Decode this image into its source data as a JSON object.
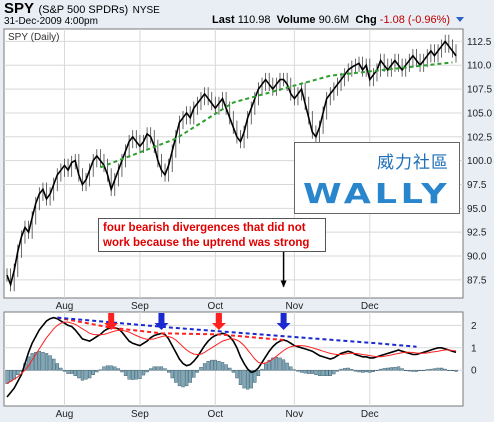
{
  "header": {
    "ticker": "SPY",
    "full_name": "(S&P 500 SPDRs)",
    "exchange": "NYSE",
    "datetime": "31-Dec-2009 4:00pm",
    "last_label": "Last",
    "last_value": "110.98",
    "volume_label": "Volume",
    "volume_value": "90.6M",
    "chg_label": "Chg",
    "chg_value": "-1.08 (-0.96%)",
    "colors": {
      "negative": "#c00000",
      "accent": "#2a63c4"
    }
  },
  "annotation": {
    "line1": "four bearish divergences that did not",
    "line2": "work because the uptrend was strong",
    "color": "#e00000"
  },
  "watermark": {
    "chinese": "威力社區",
    "latin": "WALLY"
  },
  "chart_data": [
    {
      "type": "line",
      "legend": "SPY (Daily)",
      "x_labels": [
        "Aug",
        "Sep",
        "Oct",
        "Nov",
        "Dec"
      ],
      "y_ticks": [
        "112.5",
        "110.0",
        "107.5",
        "105.0",
        "102.5",
        "100.0",
        "97.5",
        "95.0",
        "92.5",
        "90.0",
        "87.5"
      ],
      "ylim": [
        85.6,
        113.8
      ],
      "grid": true,
      "price_series": {
        "start_day": 0,
        "values": [
          88.0,
          87.0,
          88.5,
          90.5,
          92.0,
          93.0,
          92.5,
          94.0,
          95.5,
          96.5,
          97.0,
          96.0,
          96.5,
          97.5,
          98.5,
          99.0,
          99.5,
          99.0,
          99.8,
          100.0,
          98.5,
          97.5,
          98.0,
          99.0,
          100.0,
          100.5,
          100.0,
          99.5,
          98.5,
          97.0,
          98.0,
          99.0,
          100.0,
          101.0,
          102.0,
          102.5,
          102.0,
          101.5,
          102.0,
          102.8,
          102.5,
          101.5,
          100.0,
          99.0,
          98.5,
          99.5,
          101.0,
          102.5,
          104.0,
          104.5,
          105.0,
          104.5,
          105.5,
          106.0,
          106.5,
          107.0,
          106.5,
          106.0,
          105.5,
          106.0,
          106.5,
          105.5,
          104.5,
          103.5,
          102.5,
          102.0,
          103.0,
          104.5,
          105.5,
          106.5,
          107.5,
          108.0,
          108.5,
          108.0,
          107.5,
          108.0,
          108.5,
          108.5,
          108.0,
          107.0,
          106.5,
          107.0,
          107.5,
          106.0,
          104.5,
          103.0,
          102.5,
          103.5,
          105.0,
          106.5,
          107.0,
          107.5,
          108.0,
          108.5,
          109.0,
          109.5,
          109.8,
          110.0,
          110.2,
          109.5,
          110.0,
          108.5,
          109.0,
          109.5,
          110.5,
          110.0,
          109.5,
          110.0,
          110.5,
          110.0,
          109.5,
          110.0,
          110.5,
          111.0,
          110.5,
          110.0,
          110.5,
          111.0,
          111.5,
          111.0,
          111.5,
          112.0,
          112.5,
          112.0,
          111.5,
          110.98
        ]
      },
      "trendlines": [
        {
          "color": "#2e9e2e",
          "style": "dashed",
          "points": [
            [
              26,
              99.3
            ],
            [
              47,
              102.3
            ],
            [
              63,
              106.1
            ],
            [
              90,
              108.9
            ],
            [
              124,
              110.3
            ]
          ]
        }
      ],
      "arrow": {
        "day": 77,
        "from_y": 91.8,
        "to_y": 86.8,
        "color": "#000000"
      }
    },
    {
      "type": "line",
      "indicator": "MACD",
      "y_ticks": [
        "2",
        "1",
        "0"
      ],
      "ylim": [
        -1.6,
        2.6
      ],
      "series": [
        {
          "color": "#000000",
          "start_day": 0,
          "values": [
            -1.2,
            -1.0,
            -0.8,
            -0.5,
            -0.2,
            0.3,
            0.8,
            1.2,
            1.5,
            1.8,
            2.0,
            2.2,
            2.3,
            2.35,
            2.3,
            2.2,
            2.1,
            2.0,
            1.95,
            1.8,
            1.6,
            1.4,
            1.35,
            1.3,
            1.4,
            1.5,
            1.6,
            1.75,
            1.85,
            1.9,
            1.9,
            1.85,
            1.7,
            1.5,
            1.3,
            1.2,
            1.15,
            1.1,
            1.2,
            1.3,
            1.45,
            1.55,
            1.6,
            1.65,
            1.6,
            1.4,
            1.1,
            0.8,
            0.5,
            0.3,
            0.2,
            0.25,
            0.4,
            0.6,
            0.85,
            1.1,
            1.3,
            1.45,
            1.55,
            1.6,
            1.65,
            1.6,
            1.5,
            1.3,
            1.0,
            0.6,
            0.3,
            0.05,
            -0.1,
            -0.05,
            0.1,
            0.35,
            0.6,
            0.85,
            1.05,
            1.2,
            1.3,
            1.35,
            1.3,
            1.2,
            1.1,
            1.05,
            1.0,
            0.95,
            0.9,
            0.85,
            0.75,
            0.65,
            0.6,
            0.55,
            0.5,
            0.55,
            0.65,
            0.75,
            0.8,
            0.85,
            0.8,
            0.7,
            0.65,
            0.6,
            0.6,
            0.55,
            0.55,
            0.6,
            0.65,
            0.7,
            0.75,
            0.8,
            0.85,
            0.9,
            0.85,
            0.8,
            0.75,
            0.7,
            0.7,
            0.75,
            0.8,
            0.85,
            0.9,
            0.95,
            1.0,
            1.0,
            0.95,
            0.9,
            0.85,
            0.8
          ]
        },
        {
          "color": "#ff2020",
          "start_day": 0,
          "values": [
            -0.6,
            -0.5,
            -0.4,
            -0.3,
            -0.15,
            0.0,
            0.2,
            0.45,
            0.7,
            0.95,
            1.2,
            1.45,
            1.65,
            1.85,
            2.0,
            2.1,
            2.15,
            2.15,
            2.1,
            2.05,
            1.95,
            1.85,
            1.75,
            1.65,
            1.6,
            1.58,
            1.58,
            1.6,
            1.65,
            1.7,
            1.75,
            1.78,
            1.78,
            1.75,
            1.7,
            1.62,
            1.55,
            1.48,
            1.42,
            1.38,
            1.38,
            1.4,
            1.45,
            1.5,
            1.53,
            1.5,
            1.45,
            1.35,
            1.2,
            1.05,
            0.9,
            0.8,
            0.72,
            0.7,
            0.72,
            0.8,
            0.9,
            1.0,
            1.1,
            1.2,
            1.3,
            1.35,
            1.4,
            1.4,
            1.35,
            1.25,
            1.1,
            0.9,
            0.7,
            0.5,
            0.35,
            0.3,
            0.32,
            0.4,
            0.5,
            0.62,
            0.75,
            0.88,
            0.98,
            1.05,
            1.08,
            1.1,
            1.1,
            1.08,
            1.05,
            1.0,
            0.95,
            0.9,
            0.85,
            0.8,
            0.75,
            0.72,
            0.7,
            0.7,
            0.72,
            0.75,
            0.76,
            0.75,
            0.73,
            0.7,
            0.68,
            0.65,
            0.62,
            0.6,
            0.6,
            0.62,
            0.65,
            0.68,
            0.72,
            0.75,
            0.78,
            0.8,
            0.8,
            0.79,
            0.77,
            0.76,
            0.76,
            0.77,
            0.8,
            0.82,
            0.85,
            0.88,
            0.9,
            0.9,
            0.88,
            0.86
          ]
        }
      ],
      "histogram": {
        "color": "#7fa7b7",
        "values": [
          -0.6,
          -0.5,
          -0.4,
          -0.2,
          -0.05,
          0.3,
          0.6,
          0.75,
          0.8,
          0.85,
          0.8,
          0.75,
          0.65,
          0.5,
          0.3,
          0.1,
          -0.05,
          -0.15,
          -0.15,
          -0.25,
          -0.35,
          -0.45,
          -0.4,
          -0.35,
          -0.2,
          -0.08,
          0.02,
          0.15,
          0.2,
          0.2,
          0.15,
          0.07,
          -0.08,
          -0.25,
          -0.4,
          -0.42,
          -0.4,
          -0.38,
          -0.22,
          -0.08,
          0.07,
          0.15,
          0.15,
          0.15,
          0.07,
          -0.1,
          -0.35,
          -0.55,
          -0.7,
          -0.75,
          -0.7,
          -0.55,
          -0.32,
          -0.1,
          0.13,
          0.3,
          0.4,
          0.45,
          0.45,
          0.4,
          0.35,
          0.25,
          0.1,
          -0.1,
          -0.35,
          -0.65,
          -0.8,
          -0.85,
          -0.8,
          -0.55,
          -0.25,
          0.05,
          0.28,
          0.45,
          0.55,
          0.58,
          0.55,
          0.47,
          0.32,
          0.15,
          0.02,
          -0.05,
          -0.1,
          -0.13,
          -0.15,
          -0.15,
          -0.2,
          -0.25,
          -0.25,
          -0.25,
          -0.25,
          -0.17,
          -0.05,
          0.05,
          0.08,
          0.1,
          0.04,
          -0.05,
          -0.08,
          -0.1,
          -0.08,
          -0.1,
          -0.07,
          0.0,
          0.05,
          0.08,
          0.1,
          0.12,
          0.13,
          0.15,
          0.07,
          0.0,
          -0.04,
          -0.06,
          -0.06,
          -0.02,
          0.0,
          0.03,
          0.05,
          0.07,
          0.1,
          0.1,
          0.05,
          0.0,
          -0.01,
          -0.06
        ]
      },
      "trendlines": [
        {
          "color": "#ff2020",
          "style": "dashed",
          "points": [
            [
              14,
              2.35
            ],
            [
              29,
              1.9
            ],
            [
              43,
              1.65
            ],
            [
              59,
              1.6
            ],
            [
              77,
              1.35
            ]
          ]
        },
        {
          "color": "#1a2ad0",
          "style": "dashed",
          "points": [
            [
              14,
              2.35
            ],
            [
              46,
              1.9
            ],
            [
              103,
              1.2
            ],
            [
              114,
              1.05
            ]
          ]
        }
      ],
      "arrows": [
        {
          "day": 29,
          "color": "#ff2020"
        },
        {
          "day": 43,
          "color": "#1a2ad0"
        },
        {
          "day": 59,
          "color": "#ff2020"
        },
        {
          "day": 77,
          "color": "#1a2ad0"
        }
      ]
    }
  ]
}
